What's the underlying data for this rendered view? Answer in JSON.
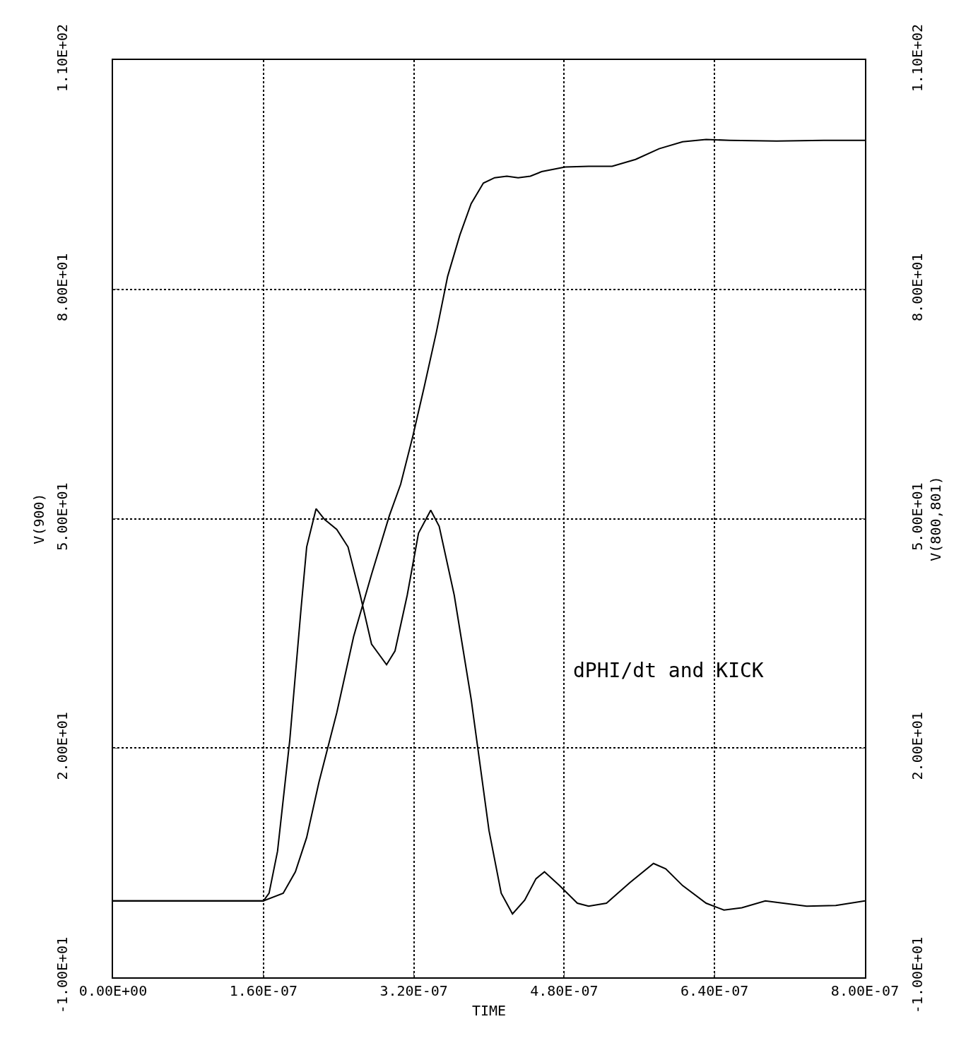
{
  "chart_data": {
    "type": "line",
    "xlabel": "TIME",
    "ylabel": "V(900)",
    "y2label": "V(800,801)",
    "annotations": [
      "dPHI/dt and KICK"
    ],
    "xlim": [
      0,
      8e-07
    ],
    "xticks": [
      {
        "value": 0,
        "label": "0.00E+00"
      },
      {
        "value": 1.6e-07,
        "label": "1.60E-07"
      },
      {
        "value": 3.2e-07,
        "label": "3.20E-07"
      },
      {
        "value": 4.8e-07,
        "label": "4.80E-07"
      },
      {
        "value": 6.4e-07,
        "label": "6.40E-07"
      },
      {
        "value": 8e-07,
        "label": "8.00E-07"
      }
    ],
    "ylim": [
      -10,
      110
    ],
    "yticks": [
      {
        "value": -10,
        "label": "-1.00E+01"
      },
      {
        "value": 20,
        "label": "2.00E+01"
      },
      {
        "value": 50,
        "label": "5.00E+01"
      },
      {
        "value": 80,
        "label": "8.00E+01"
      },
      {
        "value": 110,
        "label": "1.10E+02"
      }
    ],
    "y2lim": [
      -10,
      110
    ],
    "y2ticks": [
      {
        "value": -10,
        "label": "-1.00E+01"
      },
      {
        "value": 20,
        "label": "2.00E+01"
      },
      {
        "value": 50,
        "label": "5.00E+01"
      },
      {
        "value": 80,
        "label": "8.00E+01"
      },
      {
        "value": 110,
        "label": "1.10E+02"
      }
    ],
    "grid": true,
    "line_style": "solid",
    "marker": "none",
    "series": [
      {
        "color": "#000000",
        "x": [
          0,
          1.6e-07,
          1.81e-07,
          1.94e-07,
          2.06e-07,
          2.19e-07,
          2.38e-07,
          2.56e-07,
          2.75e-07,
          2.94e-07,
          3.06e-07,
          3.19e-07,
          3.31e-07,
          3.44e-07,
          3.56e-07,
          3.69e-07,
          3.81e-07,
          3.94e-07,
          4.06e-07,
          4.19e-07,
          4.31e-07,
          4.44e-07,
          4.56e-07,
          4.81e-07,
          5.06e-07,
          5.31e-07,
          5.56e-07,
          5.81e-07,
          6.06e-07,
          6.31e-07,
          6.56e-07,
          7.06e-07,
          7.56e-07,
          8e-07
        ],
        "values": [
          0,
          0,
          1.0,
          3.8,
          8.3,
          15.5,
          24.6,
          34.6,
          42.7,
          50.4,
          54.5,
          60.8,
          67.2,
          74.4,
          81.7,
          87.1,
          91.2,
          93.9,
          94.6,
          94.8,
          94.6,
          94.8,
          95.4,
          96.0,
          96.1,
          96.1,
          97.0,
          98.4,
          99.3,
          99.6,
          99.5,
          99.4,
          99.5,
          99.5
        ]
      },
      {
        "color": "#000000",
        "axis": "y2",
        "x": [
          0,
          1.6e-07,
          1.66e-07,
          1.75e-07,
          1.88e-07,
          2e-07,
          2.06e-07,
          2.16e-07,
          2.25e-07,
          2.38e-07,
          2.5e-07,
          2.63e-07,
          2.75e-07,
          2.91e-07,
          3e-07,
          3.13e-07,
          3.25e-07,
          3.38e-07,
          3.47e-07,
          3.63e-07,
          3.81e-07,
          4e-07,
          4.13e-07,
          4.25e-07,
          4.38e-07,
          4.5e-07,
          4.59e-07,
          4.75e-07,
          4.94e-07,
          5.06e-07,
          5.25e-07,
          5.5e-07,
          5.75e-07,
          5.88e-07,
          6.06e-07,
          6.31e-07,
          6.5e-07,
          6.69e-07,
          6.94e-07,
          7.13e-07,
          7.38e-07,
          7.69e-07,
          8e-07
        ],
        "values": [
          0,
          0,
          1.0,
          6.5,
          21.0,
          38.2,
          46.3,
          51.3,
          49.9,
          48.6,
          46.3,
          40.0,
          33.6,
          30.9,
          32.7,
          40.0,
          48.1,
          51.1,
          49.0,
          40.0,
          26.4,
          9.2,
          1.0,
          -1.7,
          0.1,
          2.9,
          3.8,
          2.0,
          -0.3,
          -0.7,
          -0.3,
          2.4,
          4.9,
          4.2,
          2.0,
          -0.3,
          -1.2,
          -0.9,
          0,
          -0.3,
          -0.7,
          -0.6,
          0
        ]
      }
    ]
  }
}
